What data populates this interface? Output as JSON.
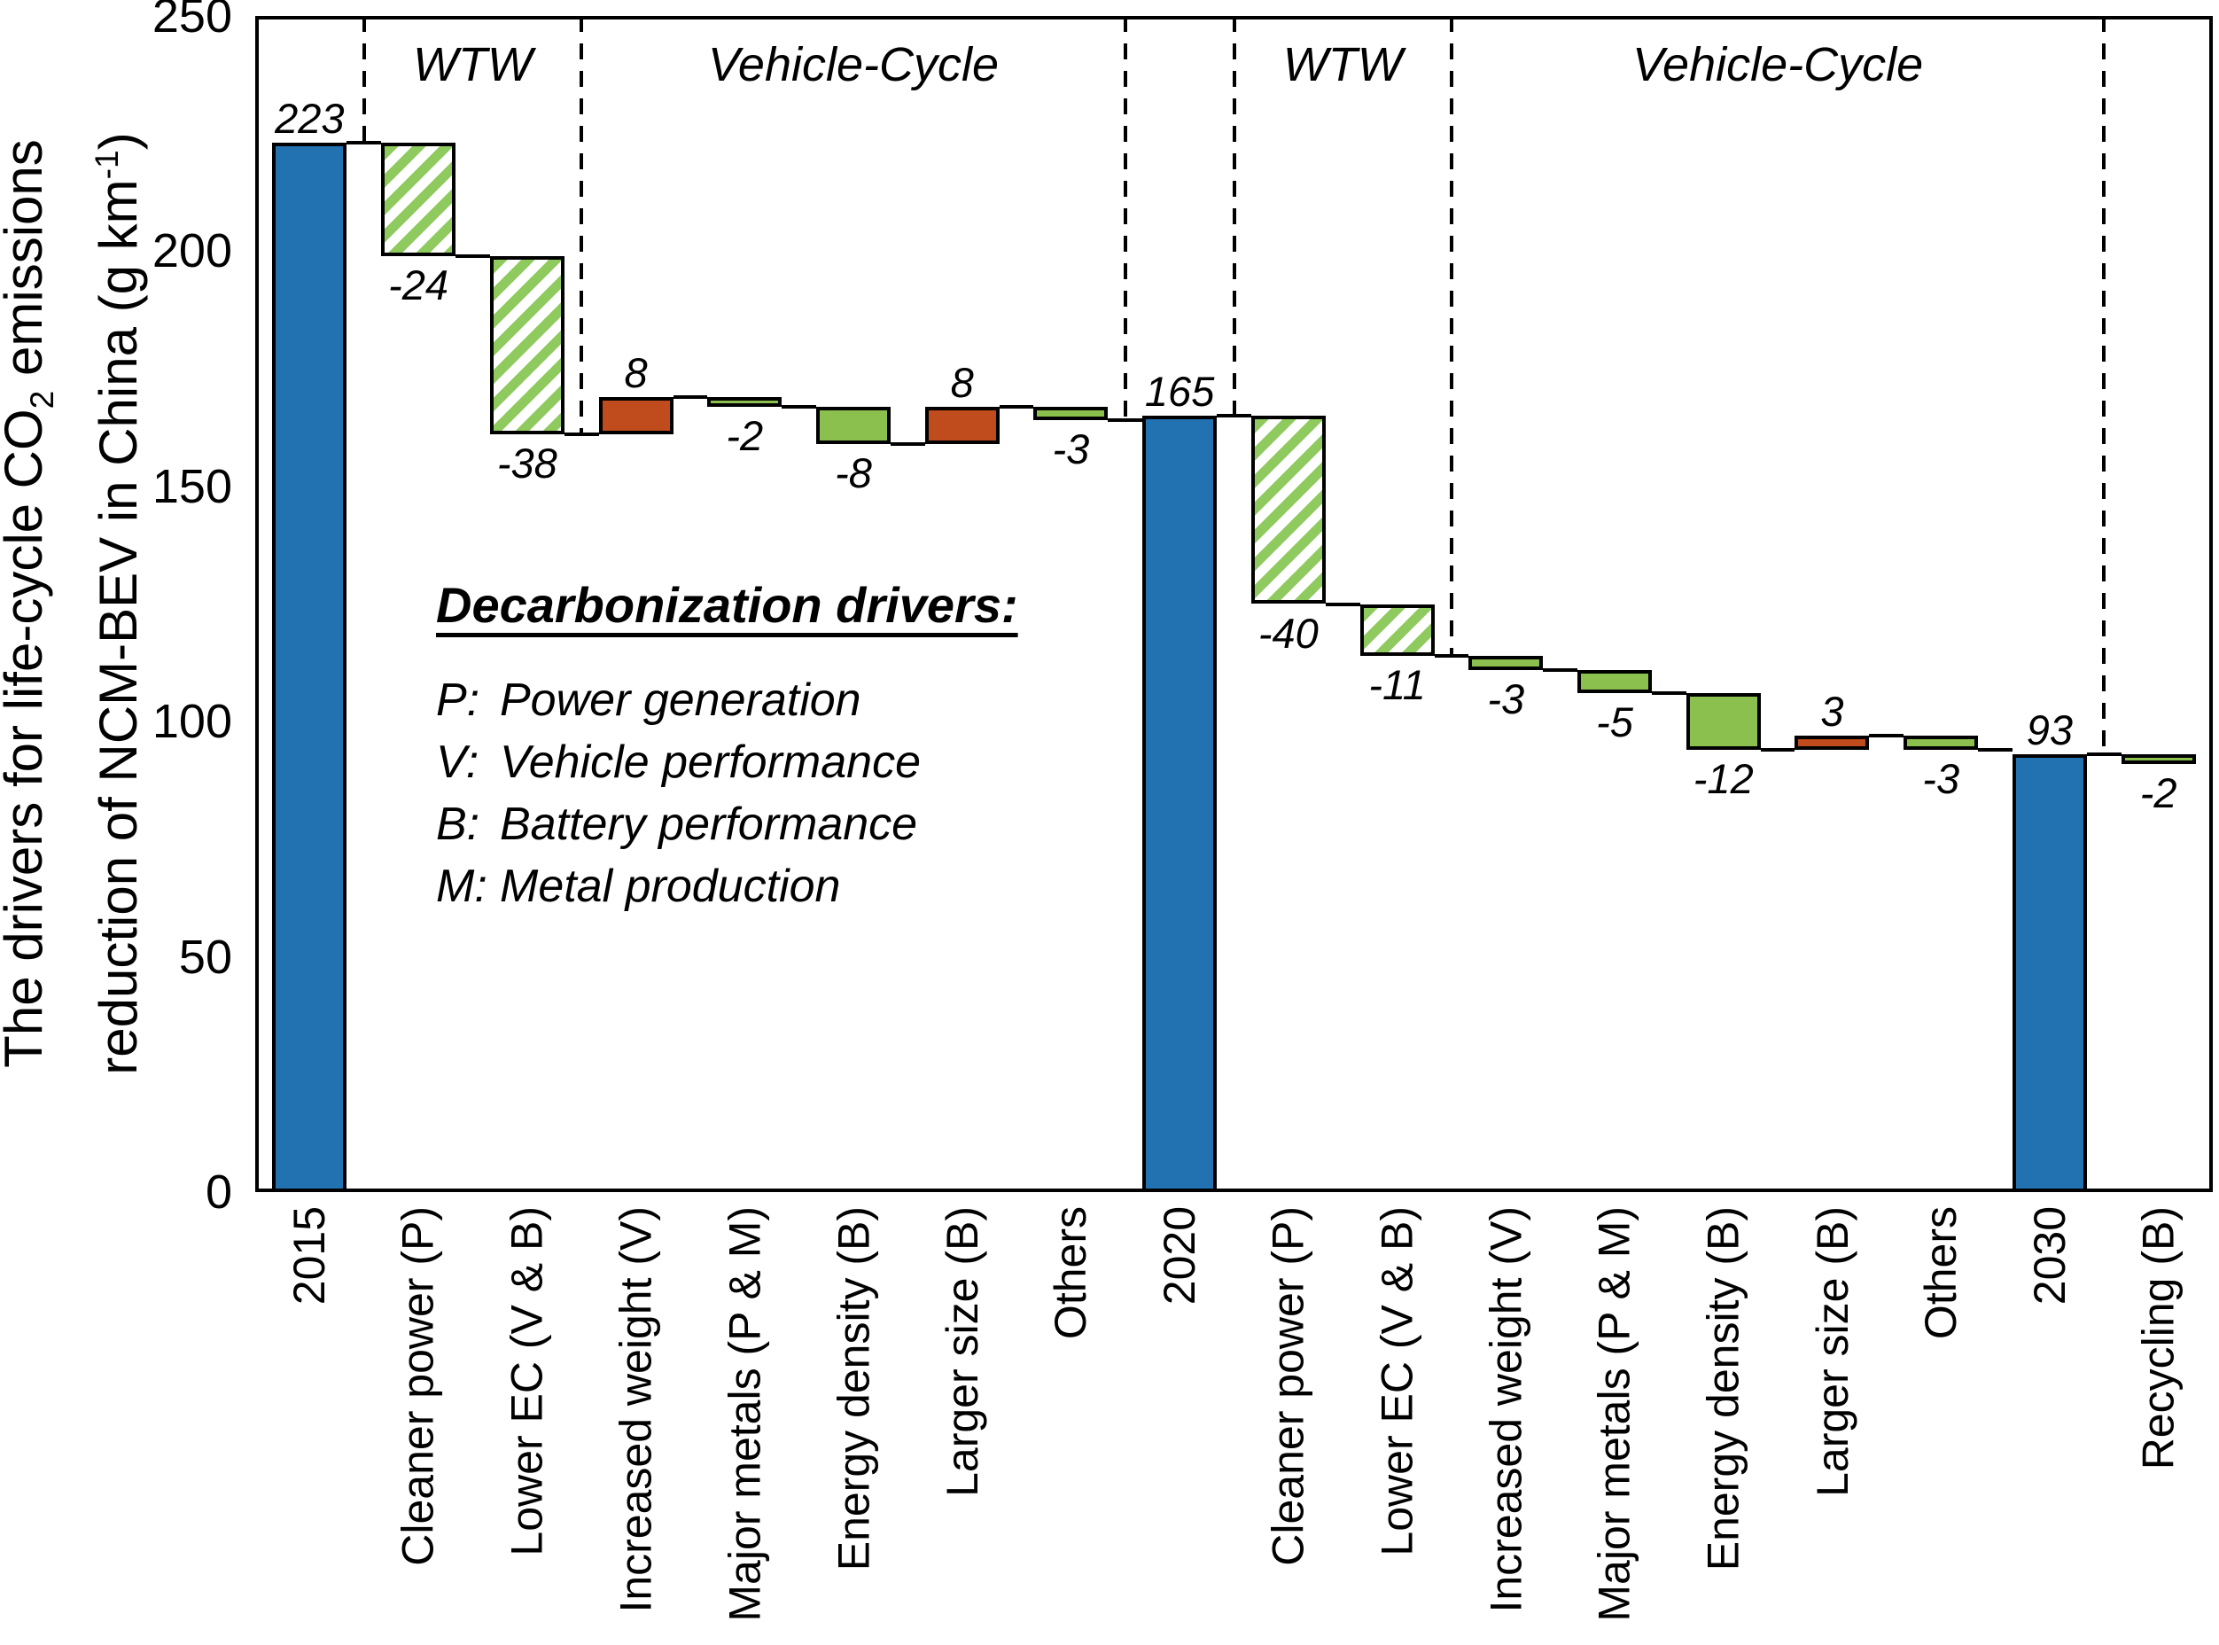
{
  "y_axis": {
    "title_line1_pre": "The drivers for life-cycle CO",
    "title_line1_sub": "2",
    "title_line1_post": " emissions",
    "title_line2_pre": "reduction of NCM-BEV in China (g km",
    "title_line2_sup": "-1",
    "title_line2_post": ")",
    "ticks": [
      "0",
      "50",
      "100",
      "150",
      "200",
      "250"
    ]
  },
  "legend": {
    "title": "Decarbonization drivers:",
    "items": [
      {
        "key": "P:",
        "text": "Power generation"
      },
      {
        "key": "V:",
        "text": "Vehicle performance"
      },
      {
        "key": "B:",
        "text": "Battery performance"
      },
      {
        "key": "M:",
        "text": "Metal production"
      }
    ]
  },
  "colors": {
    "year_bar": "#2272B2",
    "decrease_bar": "#8BC04E",
    "increase_bar": "#C04B1C",
    "wtw_hatch_stripe": "#8FCA5F",
    "line": "#000000",
    "background": "#FFFFFF"
  },
  "chart_data": {
    "type": "bar",
    "subtype": "waterfall",
    "title": "",
    "xlabel": "",
    "ylabel": "The drivers for life-cycle CO2 emissions reduction of NCM-BEV in China (g km-1)",
    "ylim": [
      0,
      250
    ],
    "y_ticks": [
      0,
      50,
      100,
      150,
      200,
      250
    ],
    "grid": false,
    "bars": [
      {
        "label": "2015",
        "value": 223,
        "kind": "level",
        "style": "year"
      },
      {
        "label": "Cleaner power (P)",
        "value": -24,
        "kind": "delta",
        "style": "hatch"
      },
      {
        "label": "Lower EC (V & B)",
        "value": -38,
        "kind": "delta",
        "style": "hatch"
      },
      {
        "label": "Increased weight (V)",
        "value": 8,
        "kind": "delta",
        "style": "inc"
      },
      {
        "label": "Major metals (P & M)",
        "value": -2,
        "kind": "delta",
        "style": "dec"
      },
      {
        "label": "Energy density (B)",
        "value": -8,
        "kind": "delta",
        "style": "dec"
      },
      {
        "label": "Larger size (B)",
        "value": 8,
        "kind": "delta",
        "style": "inc"
      },
      {
        "label": "Others",
        "value": -3,
        "kind": "delta",
        "style": "dec"
      },
      {
        "label": "2020",
        "value": 165,
        "kind": "level",
        "style": "year"
      },
      {
        "label": "Cleaner power (P)",
        "value": -40,
        "kind": "delta",
        "style": "hatch"
      },
      {
        "label": "Lower EC (V & B)",
        "value": -11,
        "kind": "delta",
        "style": "hatch"
      },
      {
        "label": "Increased weight (V)",
        "value": -3,
        "kind": "delta",
        "style": "dec"
      },
      {
        "label": "Major metals (P & M)",
        "value": -5,
        "kind": "delta",
        "style": "dec"
      },
      {
        "label": "Energy density (B)",
        "value": -12,
        "kind": "delta",
        "style": "dec"
      },
      {
        "label": "Larger size (B)",
        "value": 3,
        "kind": "delta",
        "style": "inc"
      },
      {
        "label": "Others",
        "value": -3,
        "kind": "delta",
        "style": "dec"
      },
      {
        "label": "2030",
        "value": 93,
        "kind": "level",
        "style": "year"
      },
      {
        "label": "Recycling (B)",
        "value": -2,
        "kind": "delta",
        "style": "dec"
      }
    ],
    "dividers_after_slot": [
      0,
      2,
      7,
      8,
      10,
      16
    ],
    "sections": [
      {
        "label": "WTW",
        "from_slot": 1,
        "to_slot": 2
      },
      {
        "label": "Vehicle-Cycle",
        "from_slot": 3,
        "to_slot": 7
      },
      {
        "label": "WTW",
        "from_slot": 9,
        "to_slot": 10
      },
      {
        "label": "Vehicle-Cycle",
        "from_slot": 11,
        "to_slot": 16
      }
    ]
  }
}
